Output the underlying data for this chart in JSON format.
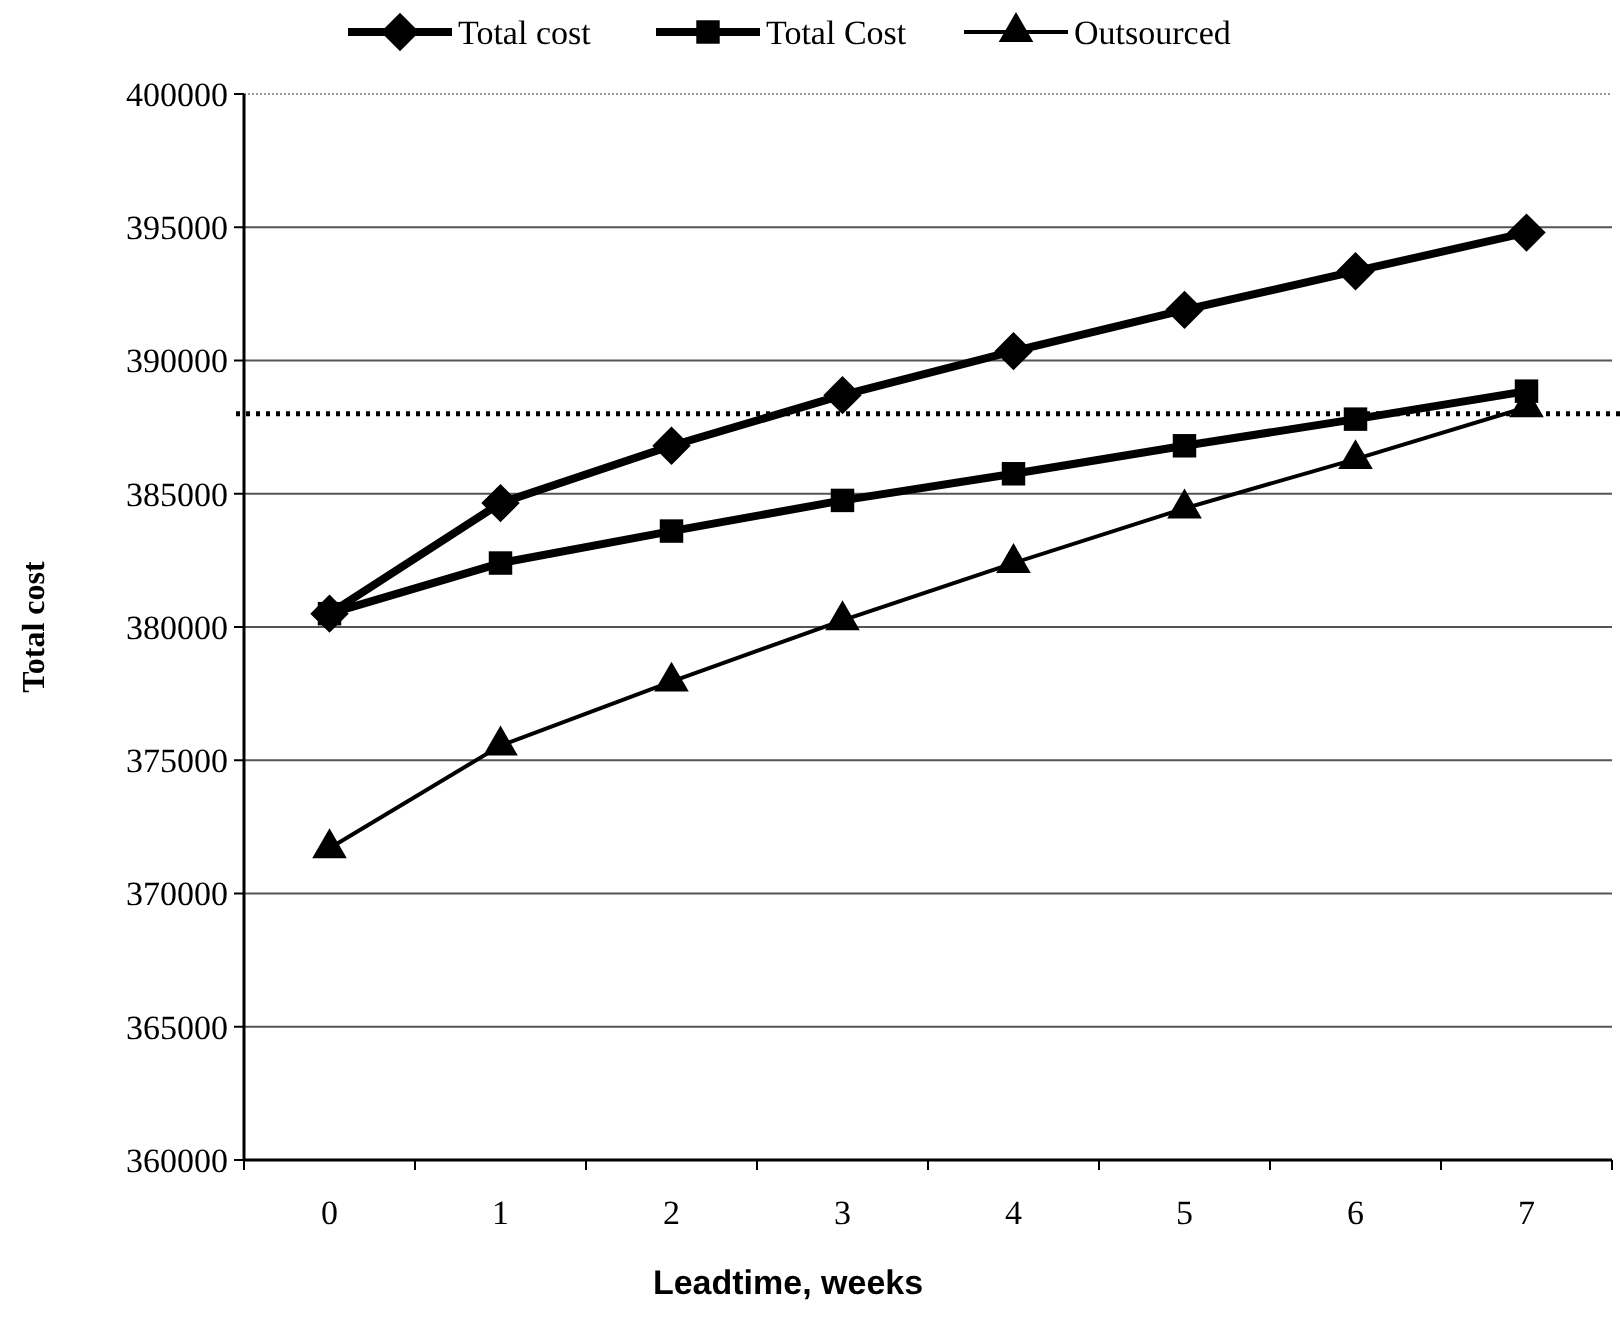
{
  "chart_data": {
    "type": "line",
    "xlabel": "Leadtime, weeks",
    "ylabel": "Total cost",
    "categories": [
      "0",
      "1",
      "2",
      "3",
      "4",
      "5",
      "6",
      "7"
    ],
    "series": [
      {
        "name": "Total cost",
        "color": "#000000",
        "marker": "diamond",
        "values": [
          380500,
          384650,
          386800,
          388700,
          390350,
          391900,
          393350,
          394800
        ]
      },
      {
        "name": "Total Cost",
        "color": "#000000",
        "marker": "square",
        "values": [
          380500,
          382400,
          383600,
          384750,
          385750,
          386800,
          387800,
          388850
        ]
      },
      {
        "name": "Outsourced",
        "color": "#000000",
        "marker": "triangle",
        "values": [
          371700,
          375550,
          377950,
          380250,
          382400,
          384450,
          386300,
          388250
        ]
      }
    ],
    "ylim": [
      360000,
      400000
    ],
    "yticks": [
      360000,
      365000,
      370000,
      375000,
      380000,
      385000,
      390000,
      395000,
      400000
    ],
    "ref_lines": [
      {
        "axis": "y",
        "value": 388000,
        "color": "#000000",
        "line_style": "dotted"
      }
    ],
    "grid": "y",
    "legend": "top",
    "line_style": "solid"
  }
}
